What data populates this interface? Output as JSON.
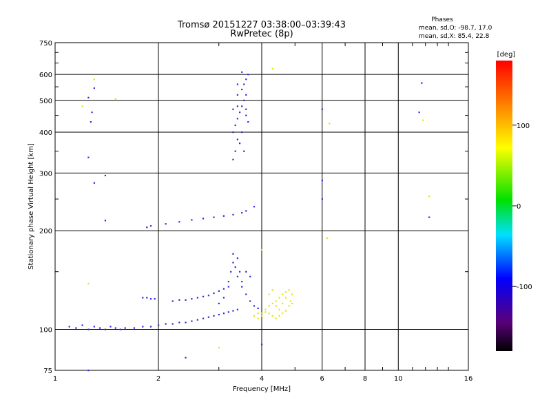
{
  "chart_data": {
    "type": "scatter",
    "title": "Tromsø 20151227 03:38:00–03:39:43",
    "subtitle": "RwPretec (8p)",
    "xlabel": "Frequency [MHz]",
    "ylabel": "Stationary phase Virtual Height [km]",
    "x_scale": "log",
    "y_scale": "log",
    "xlim": [
      1,
      16
    ],
    "ylim": [
      75,
      750
    ],
    "x_ticks": [
      1,
      2,
      4,
      6,
      8,
      10,
      16
    ],
    "y_ticks": [
      75,
      100,
      200,
      300,
      400,
      500,
      600,
      750
    ],
    "grid": true,
    "colorbar": {
      "label": "[deg]",
      "range": [
        -180,
        180
      ],
      "ticks": [
        100,
        0,
        -100
      ]
    },
    "stats": {
      "heading": "Phases",
      "line1": "mean, sd,O: -98.7, 17.0",
      "line2": "mean, sd,X:  85.4, 22.8"
    },
    "series": [
      {
        "mode": "O",
        "color": "#2a2ae0",
        "points": [
          [
            1.1,
            102
          ],
          [
            1.15,
            101
          ],
          [
            1.2,
            103
          ],
          [
            1.25,
            100
          ],
          [
            1.3,
            102
          ],
          [
            1.35,
            101
          ],
          [
            1.4,
            100
          ],
          [
            1.45,
            102
          ],
          [
            1.5,
            101
          ],
          [
            1.55,
            100
          ],
          [
            1.6,
            101
          ],
          [
            1.7,
            101
          ],
          [
            1.8,
            102
          ],
          [
            1.9,
            102
          ],
          [
            2.0,
            103
          ],
          [
            2.1,
            104
          ],
          [
            2.2,
            104
          ],
          [
            2.3,
            105
          ],
          [
            2.4,
            105
          ],
          [
            2.5,
            106
          ],
          [
            2.6,
            107
          ],
          [
            2.7,
            108
          ],
          [
            2.8,
            109
          ],
          [
            2.9,
            110
          ],
          [
            3.0,
            111
          ],
          [
            3.1,
            112
          ],
          [
            3.2,
            113
          ],
          [
            3.3,
            114
          ],
          [
            3.4,
            115
          ],
          [
            1.8,
            125
          ],
          [
            1.85,
            125
          ],
          [
            1.9,
            124
          ],
          [
            1.95,
            124
          ],
          [
            2.2,
            122
          ],
          [
            2.3,
            123
          ],
          [
            2.4,
            123
          ],
          [
            2.5,
            124
          ],
          [
            2.6,
            125
          ],
          [
            2.7,
            126
          ],
          [
            2.8,
            127
          ],
          [
            2.9,
            129
          ],
          [
            3.0,
            131
          ],
          [
            3.1,
            133
          ],
          [
            3.2,
            135
          ],
          [
            3.0,
            120
          ],
          [
            3.1,
            125
          ],
          [
            3.2,
            140
          ],
          [
            3.25,
            150
          ],
          [
            3.3,
            160
          ],
          [
            3.35,
            155
          ],
          [
            3.4,
            145
          ],
          [
            3.5,
            135
          ],
          [
            3.6,
            128
          ],
          [
            3.7,
            122
          ],
          [
            3.8,
            118
          ],
          [
            3.9,
            116
          ],
          [
            3.3,
            170
          ],
          [
            3.4,
            165
          ],
          [
            3.45,
            150
          ],
          [
            3.5,
            140
          ],
          [
            3.6,
            150
          ],
          [
            3.7,
            145
          ],
          [
            1.85,
            205
          ],
          [
            1.9,
            207
          ],
          [
            2.1,
            210
          ],
          [
            2.3,
            213
          ],
          [
            2.5,
            216
          ],
          [
            2.7,
            218
          ],
          [
            2.9,
            220
          ],
          [
            3.1,
            222
          ],
          [
            3.3,
            224
          ],
          [
            3.5,
            227
          ],
          [
            3.6,
            230
          ],
          [
            3.8,
            237
          ],
          [
            3.3,
            330
          ],
          [
            3.35,
            350
          ],
          [
            3.4,
            380
          ],
          [
            3.3,
            400
          ],
          [
            3.35,
            420
          ],
          [
            3.4,
            440
          ],
          [
            3.45,
            460
          ],
          [
            3.5,
            480
          ],
          [
            3.55,
            500
          ],
          [
            3.6,
            520
          ],
          [
            3.5,
            540
          ],
          [
            3.55,
            560
          ],
          [
            3.6,
            580
          ],
          [
            3.65,
            600
          ],
          [
            3.4,
            560
          ],
          [
            3.5,
            610
          ],
          [
            3.4,
            520
          ],
          [
            3.3,
            470
          ],
          [
            3.6,
            450
          ],
          [
            3.65,
            430
          ],
          [
            3.5,
            400
          ],
          [
            3.45,
            370
          ],
          [
            3.55,
            350
          ],
          [
            3.6,
            470
          ],
          [
            3.4,
            480
          ],
          [
            1.3,
            545
          ],
          [
            1.25,
            510
          ],
          [
            1.28,
            460
          ],
          [
            1.27,
            430
          ],
          [
            1.25,
            335
          ],
          [
            1.3,
            280
          ],
          [
            1.4,
            295
          ],
          [
            1.4,
            215
          ],
          [
            11.7,
            565
          ],
          [
            11.5,
            460
          ],
          [
            12.3,
            220
          ],
          [
            6.0,
            470
          ],
          [
            6.0,
            285
          ],
          [
            6.0,
            250
          ],
          [
            2.4,
            82
          ],
          [
            4.0,
            90
          ],
          [
            1.25,
            75
          ]
        ]
      },
      {
        "mode": "X",
        "color": "#e6e600",
        "points": [
          [
            3.8,
            110
          ],
          [
            3.9,
            108
          ],
          [
            4.0,
            112
          ],
          [
            4.1,
            115
          ],
          [
            4.2,
            118
          ],
          [
            4.3,
            120
          ],
          [
            4.4,
            122
          ],
          [
            4.5,
            125
          ],
          [
            4.6,
            128
          ],
          [
            4.7,
            130
          ],
          [
            4.8,
            132
          ],
          [
            4.9,
            128
          ],
          [
            4.85,
            122
          ],
          [
            4.8,
            118
          ],
          [
            4.7,
            114
          ],
          [
            4.6,
            112
          ],
          [
            4.5,
            110
          ],
          [
            4.4,
            108
          ],
          [
            4.3,
            110
          ],
          [
            4.2,
            112
          ],
          [
            4.1,
            113
          ],
          [
            4.0,
            110
          ],
          [
            3.9,
            112
          ],
          [
            4.2,
            128
          ],
          [
            4.3,
            132
          ],
          [
            4.4,
            118
          ],
          [
            4.5,
            115
          ],
          [
            4.6,
            120
          ],
          [
            4.7,
            125
          ],
          [
            4.9,
            120
          ],
          [
            4.3,
            625
          ],
          [
            1.3,
            580
          ],
          [
            1.2,
            480
          ],
          [
            1.5,
            505
          ],
          [
            6.3,
            425
          ],
          [
            6.2,
            190
          ],
          [
            4.0,
            175
          ],
          [
            1.25,
            138
          ],
          [
            3.0,
            88
          ],
          [
            11.8,
            435
          ],
          [
            12.3,
            255
          ]
        ]
      }
    ]
  }
}
